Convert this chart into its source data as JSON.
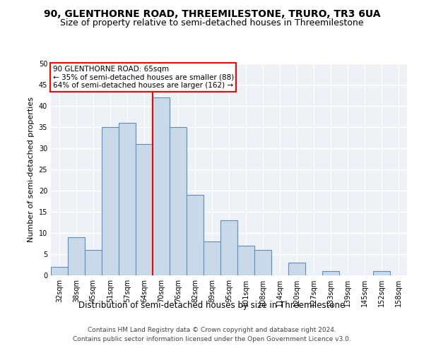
{
  "title": "90, GLENTHORNE ROAD, THREEMILESTONE, TRURO, TR3 6UA",
  "subtitle": "Size of property relative to semi-detached houses in Threemilestone",
  "xlabel": "Distribution of semi-detached houses by size in Threemilestone",
  "ylabel": "Number of semi-detached properties",
  "categories": [
    "32sqm",
    "38sqm",
    "45sqm",
    "51sqm",
    "57sqm",
    "64sqm",
    "70sqm",
    "76sqm",
    "82sqm",
    "89sqm",
    "95sqm",
    "101sqm",
    "108sqm",
    "114sqm",
    "120sqm",
    "127sqm",
    "133sqm",
    "139sqm",
    "145sqm",
    "152sqm",
    "158sqm"
  ],
  "values": [
    2,
    9,
    6,
    35,
    36,
    31,
    42,
    35,
    19,
    8,
    13,
    7,
    6,
    0,
    3,
    0,
    1,
    0,
    0,
    1,
    0
  ],
  "bar_color": "#c9d9e8",
  "bar_edge_color": "#5b8db8",
  "vline_x": 5.5,
  "vline_color": "red",
  "annotation_title": "90 GLENTHORNE ROAD: 65sqm",
  "annotation_line1": "← 35% of semi-detached houses are smaller (88)",
  "annotation_line2": "64% of semi-detached houses are larger (162) →",
  "annotation_box_color": "red",
  "ylim": [
    0,
    50
  ],
  "yticks": [
    0,
    5,
    10,
    15,
    20,
    25,
    30,
    35,
    40,
    45,
    50
  ],
  "footer1": "Contains HM Land Registry data © Crown copyright and database right 2024.",
  "footer2": "Contains public sector information licensed under the Open Government Licence v3.0.",
  "background_color": "#eef2f7",
  "grid_color": "#ffffff",
  "title_fontsize": 10,
  "subtitle_fontsize": 9,
  "xlabel_fontsize": 8.5,
  "ylabel_fontsize": 8,
  "tick_fontsize": 7,
  "footer_fontsize": 6.5,
  "ann_fontsize": 7.5
}
